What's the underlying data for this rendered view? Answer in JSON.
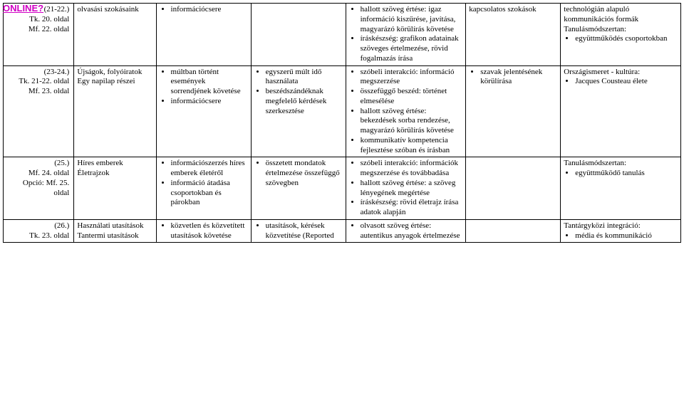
{
  "badge": "ONLINE?",
  "rows": [
    {
      "c0_lines": [
        "(21-22.)",
        "Tk. 20. oldal",
        "Mf. 22. oldal"
      ],
      "c1_lines": [
        "olvasási szokásaink"
      ],
      "c2_items": [
        "információcsere"
      ],
      "c3_lines": [],
      "c4_items": [
        "hallott szöveg értése: igaz információ kiszűrése, javítása, magyarázó körülírás követése",
        "íráskészség: grafikon adatainak szöveges értelmezése, rövid fogalmazás írása"
      ],
      "c5_lines": [
        "kapcsolatos szokások"
      ],
      "c6_lines": [
        "technológián alapuló kommunikációs formák",
        "Tanulásmódszertan:"
      ],
      "c6_items": [
        "együttműködés csoportokban"
      ]
    },
    {
      "c0_lines": [
        "(23-24.)",
        "Tk. 21-22. oldal",
        "Mf. 23. oldal"
      ],
      "c1_lines": [
        "Újságok, folyóiratok",
        "Egy napilap részei"
      ],
      "c2_items": [
        "múltban történt események sorrendjének követése",
        "információcsere"
      ],
      "c3_items": [
        "egyszerű múlt idő használata",
        "beszédszándéknak megfelelő kérdések szerkesztése"
      ],
      "c4_items": [
        "szóbeli interakció: információ megszerzése",
        "összefüggő beszéd: történet elmesélése",
        "hallott szöveg értése: bekezdések sorba rendezése, magyarázó körülírás követése",
        "kommunikatív kompetencia fejlesztése szóban és írásban"
      ],
      "c5_items": [
        "szavak jelentésének körülírása"
      ],
      "c6_lines": [
        "Országismeret - kultúra:"
      ],
      "c6_items": [
        "Jacques Cousteau élete"
      ]
    },
    {
      "c0_lines": [
        "(25.)",
        "Mf. 24. oldal",
        "Opció: Mf. 25. oldal"
      ],
      "c1_lines": [
        "Híres emberek",
        "Életrajzok"
      ],
      "c2_items": [
        "információszerzés híres emberek életéről",
        "információ átadása csoportokban és párokban"
      ],
      "c3_items": [
        "összetett mondatok értelmezése összefüggő szövegben"
      ],
      "c4_items": [
        "szóbeli interakció: információk megszerzése és továbbadása",
        "hallott szöveg értése: a szöveg lényegének megértése",
        "íráskészség: rövid életrajz írása adatok alapján"
      ],
      "c5_lines": [],
      "c6_lines": [
        "Tanulásmódszertan:"
      ],
      "c6_items": [
        "együttműködő tanulás"
      ]
    },
    {
      "c0_lines": [
        "(26.)",
        "Tk. 23. oldal"
      ],
      "c1_lines": [
        "Használati utasítások",
        "Tantermi utasítások"
      ],
      "c2_items": [
        "közvetlen és közvetített utasítások követése"
      ],
      "c3_items": [
        "utasítások, kérések közvetítése (Reported"
      ],
      "c4_items": [
        "olvasott szöveg értése: autentikus anyagok értelmezése"
      ],
      "c5_lines": [],
      "c6_lines": [
        "Tantárgyközi integráció:"
      ],
      "c6_items": [
        "média és kommunikáció"
      ]
    }
  ]
}
